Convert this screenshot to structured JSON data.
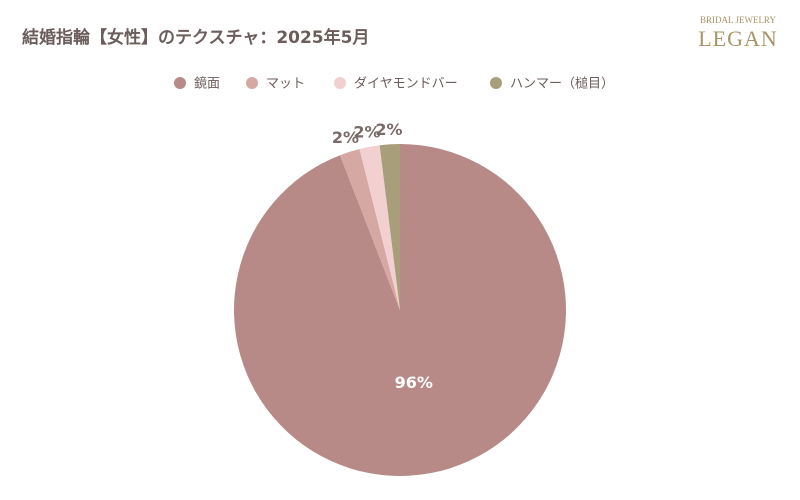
{
  "brand": {
    "subtitle": "BRIDAL JEWELRY",
    "name": "LEGAN"
  },
  "chart_data": {
    "type": "pie",
    "title": "結婚指輪【女性】のテクスチャ：2025年5月",
    "categories": [
      "鏡面",
      "マット",
      "ダイヤモンドバー",
      "ハンマー（槌目）"
    ],
    "values": [
      96,
      2,
      2,
      2
    ],
    "value_labels": [
      "96%",
      "2%",
      "2%",
      "2%"
    ],
    "colors": [
      "#b78a87",
      "#d6a8a4",
      "#f2d0d0",
      "#a89f7a"
    ],
    "legend": "top"
  }
}
